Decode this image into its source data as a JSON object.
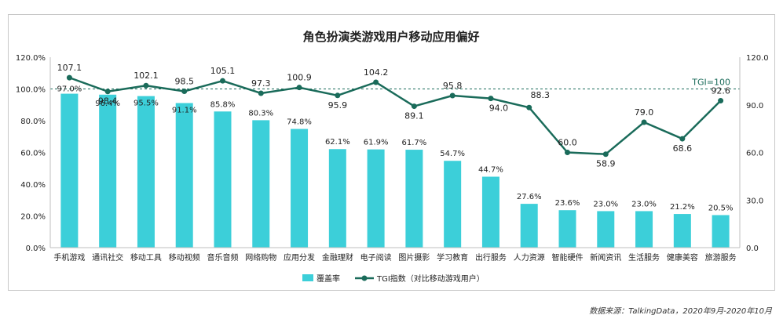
{
  "chart_data": {
    "type": "bar+line",
    "title": "角色扮演类游戏用户移动应用偏好",
    "categories": [
      "手机游戏",
      "通讯社交",
      "移动工具",
      "移动视频",
      "音乐音频",
      "网络购物",
      "应用分发",
      "金融理财",
      "电子阅读",
      "图片摄影",
      "学习教育",
      "出行服务",
      "人力资源",
      "智能硬件",
      "新闻资讯",
      "生活服务",
      "健康美容",
      "旅游服务"
    ],
    "series": [
      {
        "name": "覆盖率",
        "type": "bar",
        "axis": "left",
        "color": "#3ccfd9",
        "values": [
          97.0,
          96.4,
          95.5,
          91.1,
          85.8,
          80.3,
          74.8,
          62.1,
          61.9,
          61.7,
          54.7,
          44.7,
          27.6,
          23.6,
          23.0,
          23.0,
          21.2,
          20.5
        ],
        "labels": [
          "97.0%",
          "96.4%",
          "95.5%",
          "91.1%",
          "85.8%",
          "80.3%",
          "74.8%",
          "62.1%",
          "61.9%",
          "61.7%",
          "54.7%",
          "44.7%",
          "27.6%",
          "23.6%",
          "23.0%",
          "23.0%",
          "21.2%",
          "20.5%"
        ]
      },
      {
        "name": "TGI指数（对比移动游戏用户）",
        "type": "line",
        "axis": "right",
        "color": "#1a6b5a",
        "values": [
          107.1,
          98.4,
          102.1,
          98.5,
          105.1,
          97.3,
          100.9,
          95.9,
          104.2,
          89.1,
          95.8,
          94.0,
          88.3,
          60.0,
          58.9,
          79.0,
          68.6,
          92.6
        ],
        "labels": [
          "107.1",
          "98.4",
          "102.1",
          "98.5",
          "105.1",
          "97.3",
          "100.9",
          "95.9",
          "104.2",
          "89.1",
          "95.8",
          "94.0",
          "88.3",
          "60.0",
          "58.9",
          "79.0",
          "68.6",
          "92.6"
        ]
      }
    ],
    "left_axis": {
      "min": 0,
      "max": 120,
      "ticks": [
        "0.0%",
        "20.0%",
        "40.0%",
        "60.0%",
        "80.0%",
        "100.0%",
        "120.0%"
      ]
    },
    "right_axis": {
      "min": 0,
      "max": 120,
      "ticks": [
        "0.0",
        "30.0",
        "60.0",
        "90.0",
        "120.0"
      ]
    },
    "reference_line": {
      "value": 100,
      "label": "TGI=100"
    },
    "legend_position": "bottom",
    "grid": false
  },
  "source": "数据来源：TalkingData，2020年9月-2020年10月"
}
